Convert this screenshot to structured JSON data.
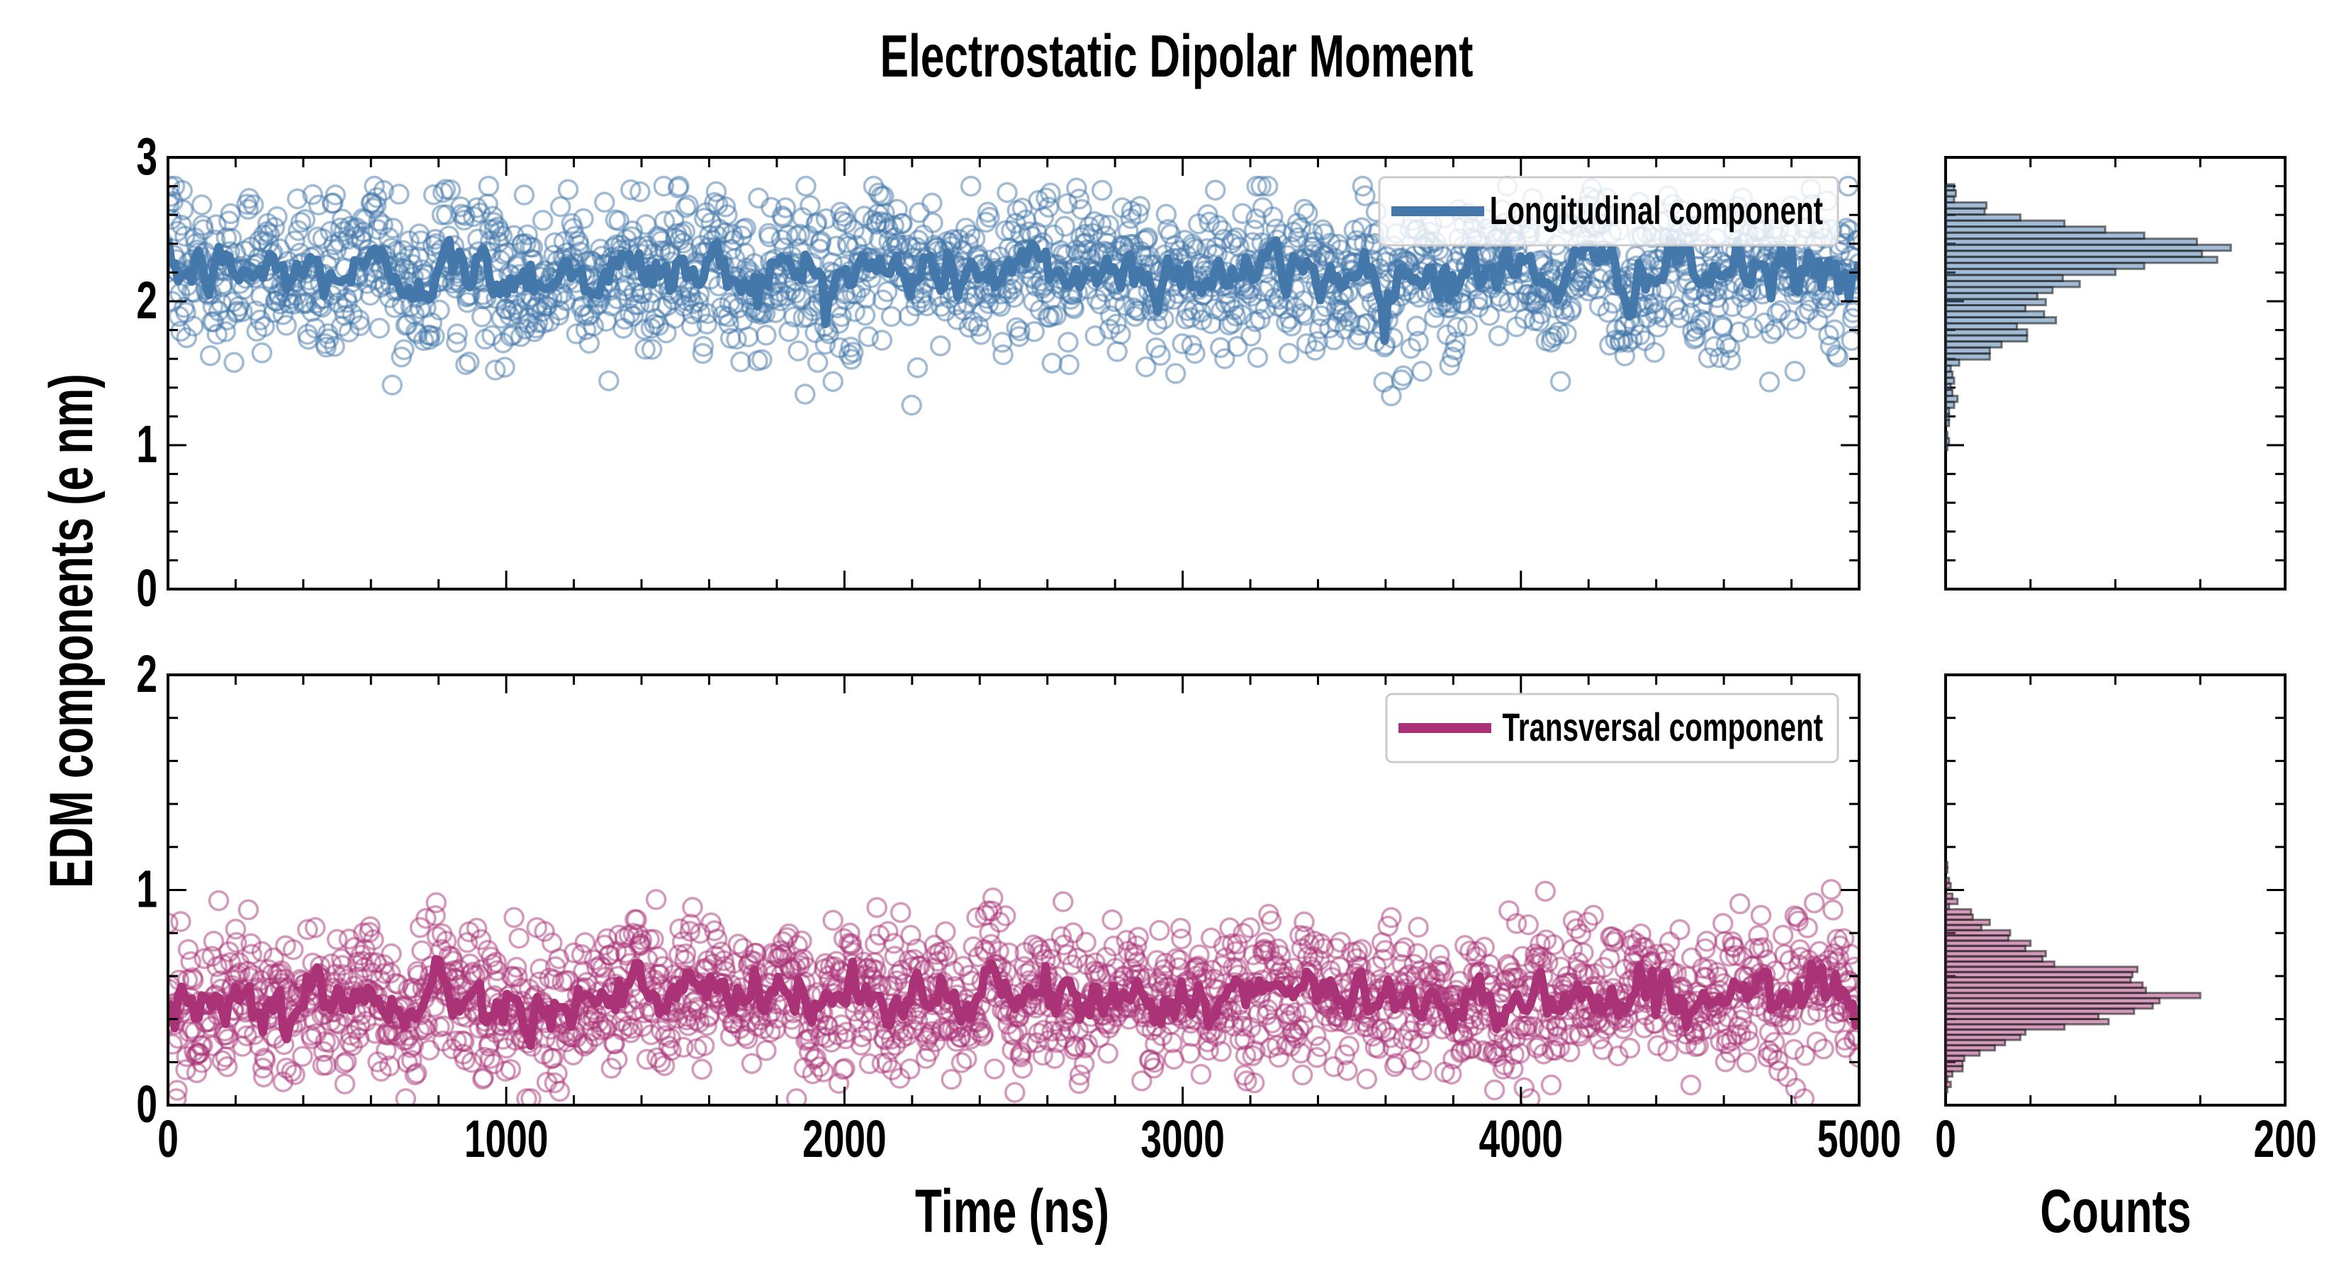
{
  "chart_data": [
    {
      "type": "scatter",
      "panel": "top-timeseries",
      "title": "Electrostatic Dipolar Moment",
      "xlabel": "Time (ns)",
      "ylabel": "EDM components (e nm)",
      "xlim": [
        0,
        5000
      ],
      "ylim": [
        0,
        3
      ],
      "xticks": [
        "0",
        "1000",
        "2000",
        "3000",
        "4000",
        "5000"
      ],
      "yticks": [
        "0",
        "1",
        "2",
        "3"
      ],
      "legend": {
        "label": "Longitudinal component",
        "placement": "top-right"
      },
      "color": "#4477aa",
      "scatter": {
        "n_points": 2000,
        "mean": 2.17,
        "std": 0.27,
        "min": 0.97,
        "max": 2.8
      },
      "running_mean": {
        "n_points": 500,
        "mean": 2.2,
        "std": 0.1
      }
    },
    {
      "type": "scatter",
      "panel": "bottom-timeseries",
      "xlim": [
        0,
        5000
      ],
      "ylim": [
        0,
        2
      ],
      "xticks": [
        "0",
        "1000",
        "2000",
        "3000",
        "4000",
        "5000"
      ],
      "yticks": [
        "0",
        "1",
        "2"
      ],
      "legend": {
        "label": "Transversal component",
        "placement": "top-right"
      },
      "color": "#aa3377",
      "scatter": {
        "n_points": 2000,
        "mean": 0.5,
        "std": 0.17,
        "min": 0.03,
        "max": 1.12
      },
      "running_mean": {
        "n_points": 500,
        "mean": 0.5,
        "std": 0.065
      }
    },
    {
      "type": "bar",
      "panel": "top-histogram",
      "orientation": "horizontal",
      "xlabel": "Counts",
      "xlim": [
        0,
        200
      ],
      "ylim": [
        0,
        3
      ],
      "bin_start": 0.965,
      "bin_width": 0.042,
      "counts": [
        1,
        2,
        1,
        0,
        2,
        2,
        2,
        5,
        7,
        4,
        3,
        5,
        4,
        3,
        8,
        26,
        26,
        33,
        48,
        48,
        42,
        65,
        58,
        47,
        59,
        54,
        63,
        79,
        69,
        100,
        117,
        160,
        151,
        168,
        148,
        117,
        94,
        70,
        44,
        23,
        24,
        5,
        6,
        5
      ],
      "color": "#4477aa"
    },
    {
      "type": "bar",
      "panel": "bottom-histogram",
      "orientation": "horizontal",
      "xlabel": "Counts",
      "xlim": [
        0,
        200
      ],
      "xticks": [
        "0",
        "200"
      ],
      "ylim": [
        0,
        2
      ],
      "bin_start": 0.06,
      "bin_width": 0.0243,
      "counts": [
        1,
        3,
        1,
        4,
        10,
        10,
        11,
        20,
        29,
        35,
        44,
        47,
        70,
        96,
        90,
        111,
        122,
        126,
        150,
        118,
        116,
        109,
        110,
        113,
        64,
        57,
        59,
        47,
        50,
        37,
        38,
        21,
        26,
        16,
        15,
        2,
        7,
        4,
        0,
        3,
        2,
        0,
        1,
        1
      ],
      "color": "#aa3377"
    }
  ]
}
